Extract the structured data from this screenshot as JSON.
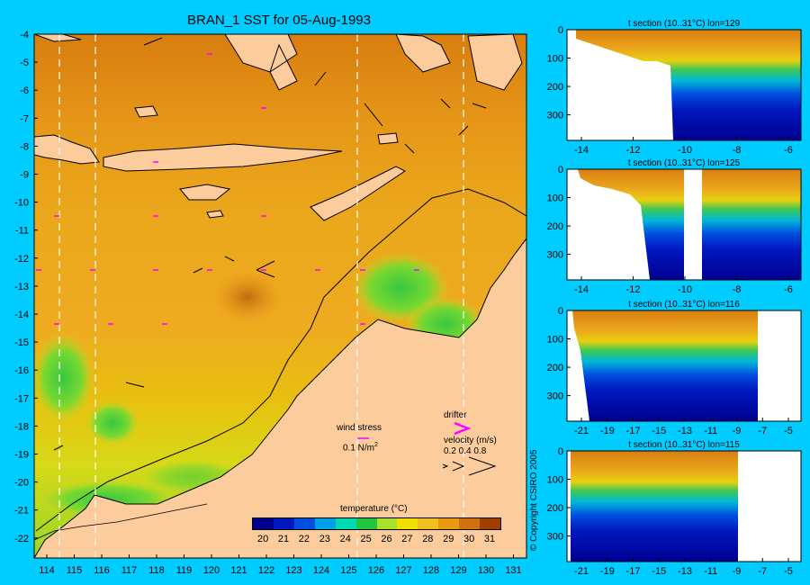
{
  "main_map": {
    "title": "BRAN_1 SST for 05-Aug-1993",
    "lon_ticks": [
      "114",
      "115",
      "116",
      "117",
      "118",
      "119",
      "120",
      "121",
      "122",
      "123",
      "124",
      "125",
      "126",
      "127",
      "128",
      "129",
      "130",
      "131"
    ],
    "lat_ticks": [
      "-4",
      "-5",
      "-6",
      "-7",
      "-8",
      "-9",
      "-10",
      "-11",
      "-12",
      "-13",
      "-14",
      "-15",
      "-16",
      "-17",
      "-18",
      "-19",
      "-20",
      "-21",
      "-22"
    ],
    "wind_stress_label": "wind stress",
    "wind_stress_value": "0.1 N/m",
    "wind_stress_exp": "2",
    "drifter_label": "drifter",
    "velocity_label": "velocity (m/s)",
    "velocity_scale": "0.2 0.4 0.8",
    "colorbar": {
      "title": "temperature (°C)",
      "ticks": [
        "20",
        "21",
        "22",
        "23",
        "24",
        "25",
        "26",
        "27",
        "28",
        "29",
        "30",
        "31"
      ],
      "colors": [
        "#000090",
        "#0018c0",
        "#0050e0",
        "#00a0e8",
        "#00d8b0",
        "#20c840",
        "#a8e030",
        "#f0e000",
        "#f0c020",
        "#e89a10",
        "#d07010",
        "#a04000"
      ]
    }
  },
  "sections": [
    {
      "title": "t section (10..31°C) lon=129",
      "x_ticks": [
        "-14",
        "-12",
        "-10",
        "-8",
        "-6"
      ],
      "y_ticks": [
        "0",
        "100",
        "200",
        "300"
      ]
    },
    {
      "title": "t section (10..31°C) lon=125",
      "x_ticks": [
        "-14",
        "-12",
        "-10",
        "-8",
        "-6"
      ],
      "y_ticks": [
        "0",
        "100",
        "200",
        "300"
      ]
    },
    {
      "title": "t section (10..31°C) lon=116",
      "x_ticks": [
        "-21",
        "-19",
        "-17",
        "-15",
        "-13",
        "-11",
        "-9",
        "-7",
        "-5"
      ],
      "y_ticks": [
        "0",
        "100",
        "200",
        "300"
      ]
    },
    {
      "title": "t section (10..31°C) lon=115",
      "x_ticks": [
        "-21",
        "-19",
        "-17",
        "-15",
        "-13",
        "-11",
        "-9",
        "-7",
        "-5"
      ],
      "y_ticks": [
        "0",
        "100",
        "200",
        "300"
      ]
    }
  ],
  "copyright": "© Copyright CSIRO 2005",
  "chart_data": {
    "type": "heatmap",
    "title": "BRAN_1 SST for 05-Aug-1993",
    "xlabel": "",
    "ylabel": "",
    "xlim": [
      113.6,
      131.6
    ],
    "ylim": [
      -22.5,
      -4
    ],
    "colorbar_range": [
      20,
      31.5
    ],
    "colorbar_label": "temperature (°C)",
    "section_longitudes": [
      129,
      125,
      116,
      115
    ],
    "section_temperature_range": [
      10,
      31
    ],
    "section_depth_range": [
      0,
      390
    ]
  }
}
